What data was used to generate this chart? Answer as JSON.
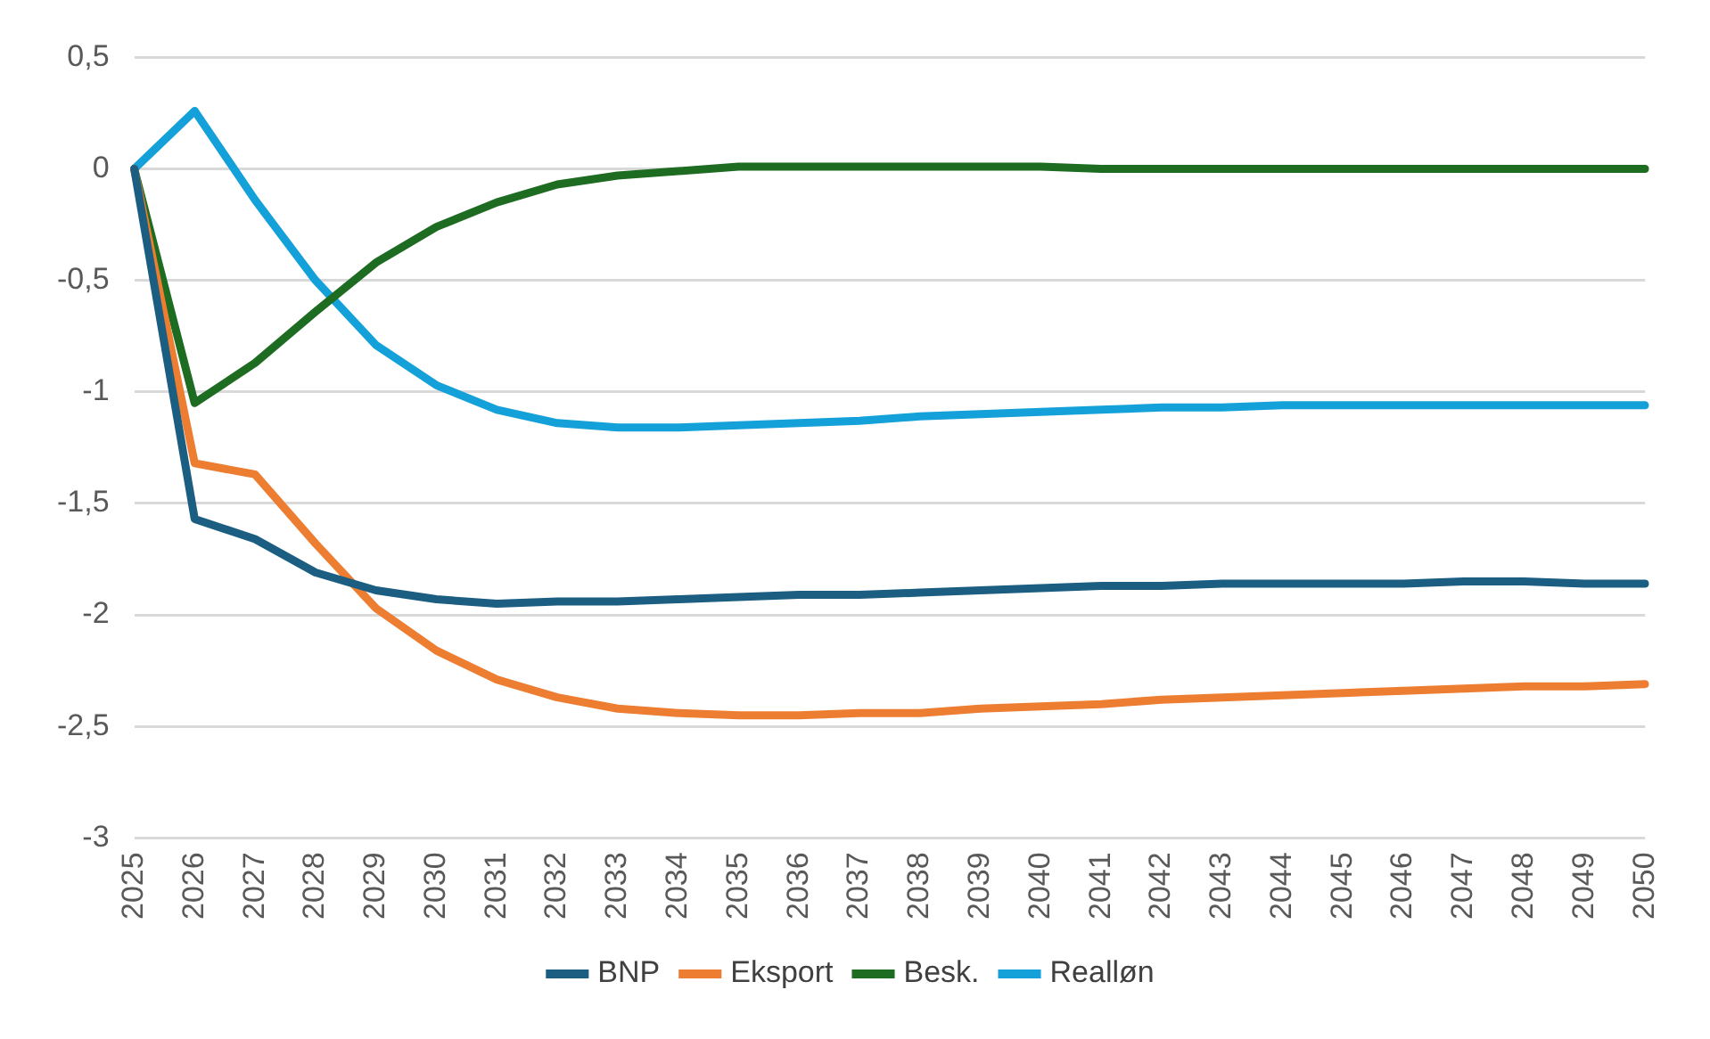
{
  "chart_data": {
    "type": "line",
    "categories": [
      "2025",
      "2026",
      "2027",
      "2028",
      "2029",
      "2030",
      "2031",
      "2032",
      "2033",
      "2034",
      "2035",
      "2036",
      "2037",
      "2038",
      "2039",
      "2040",
      "2041",
      "2042",
      "2043",
      "2044",
      "2045",
      "2046",
      "2047",
      "2048",
      "2049",
      "2050"
    ],
    "series": [
      {
        "name": "BNP",
        "color": "#1b5e82",
        "values": [
          0,
          -1.57,
          -1.66,
          -1.81,
          -1.89,
          -1.93,
          -1.95,
          -1.94,
          -1.94,
          -1.93,
          -1.92,
          -1.91,
          -1.91,
          -1.9,
          -1.89,
          -1.88,
          -1.87,
          -1.87,
          -1.86,
          -1.86,
          -1.86,
          -1.86,
          -1.85,
          -1.85,
          -1.86,
          -1.86
        ]
      },
      {
        "name": "Eksport",
        "color": "#ed7d31",
        "values": [
          0,
          -1.32,
          -1.37,
          -1.68,
          -1.97,
          -2.16,
          -2.29,
          -2.37,
          -2.42,
          -2.44,
          -2.45,
          -2.45,
          -2.44,
          -2.44,
          -2.42,
          -2.41,
          -2.4,
          -2.38,
          -2.37,
          -2.36,
          -2.35,
          -2.34,
          -2.33,
          -2.32,
          -2.32,
          -2.31
        ]
      },
      {
        "name": "Besk.",
        "color": "#1e6b22",
        "values": [
          0,
          -1.05,
          -0.87,
          -0.64,
          -0.42,
          -0.26,
          -0.15,
          -0.07,
          -0.03,
          -0.01,
          0.01,
          0.01,
          0.01,
          0.01,
          0.01,
          0.01,
          0,
          0,
          0,
          0,
          0,
          0,
          0,
          0,
          0,
          0
        ]
      },
      {
        "name": "Realløn",
        "color": "#14a0d8",
        "values": [
          0,
          0.26,
          -0.14,
          -0.5,
          -0.79,
          -0.97,
          -1.08,
          -1.14,
          -1.16,
          -1.16,
          -1.15,
          -1.14,
          -1.13,
          -1.11,
          -1.1,
          -1.09,
          -1.08,
          -1.07,
          -1.07,
          -1.06,
          -1.06,
          -1.06,
          -1.06,
          -1.06,
          -1.06,
          -1.06
        ]
      }
    ],
    "ylim": [
      -3,
      0.5
    ],
    "yticks": [
      {
        "value": 0.5,
        "label": "0,5"
      },
      0,
      {
        "value": -0.5,
        "label": "-0,5"
      },
      -1,
      {
        "value": -1.5,
        "label": "-1,5"
      },
      -2,
      {
        "value": -2.5,
        "label": "-2,5"
      },
      -3
    ],
    "grid": "y",
    "legend": "bottom",
    "marker": "none",
    "line_style": "solid"
  }
}
